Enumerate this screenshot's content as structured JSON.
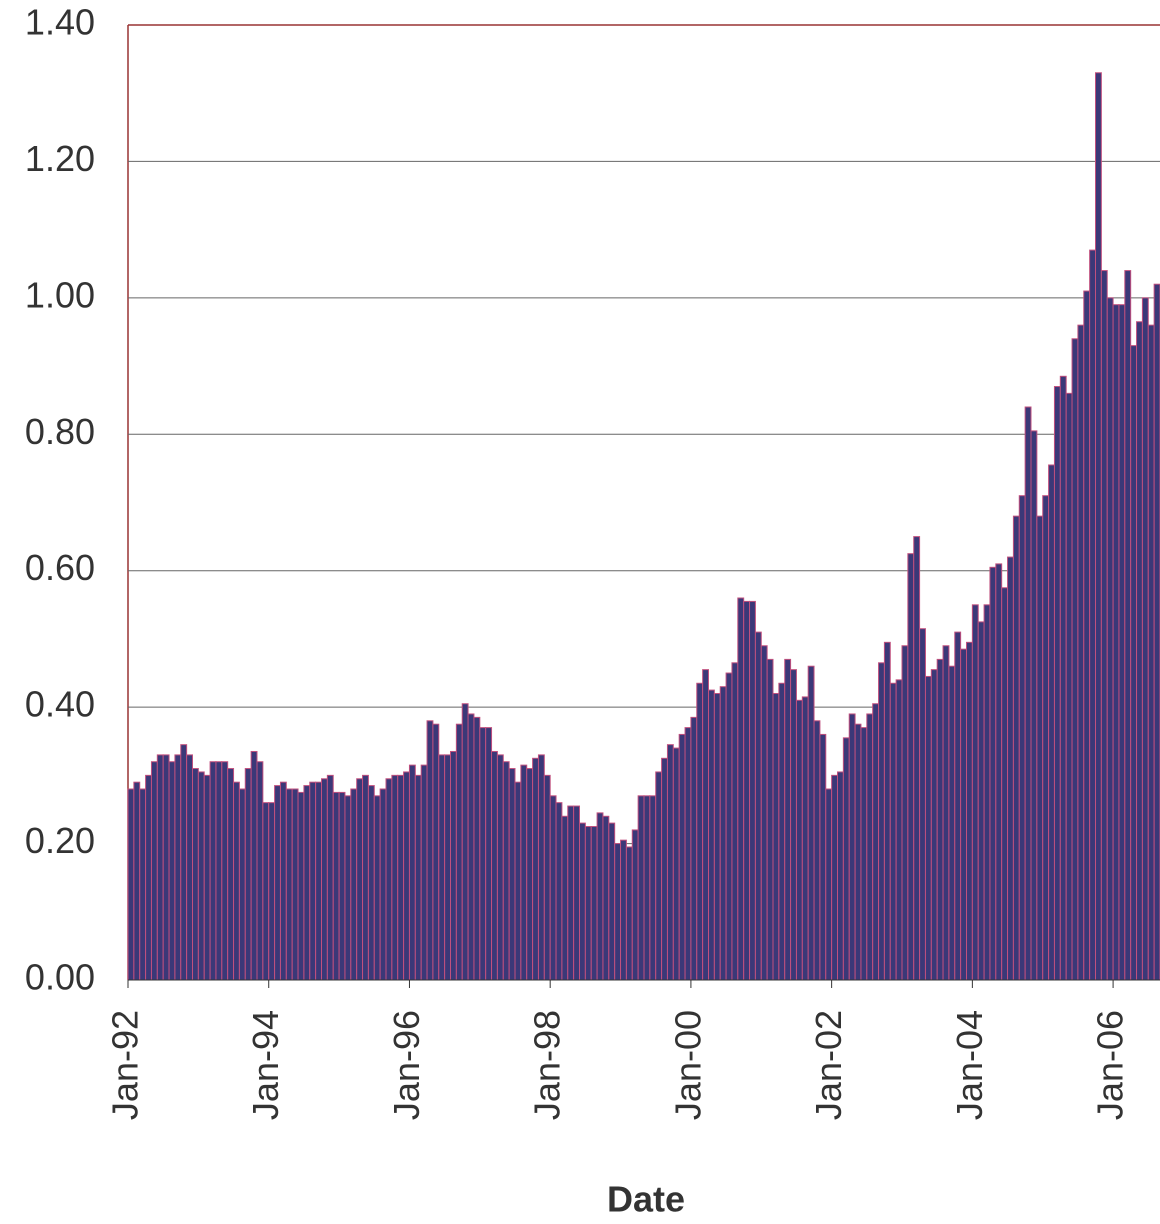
{
  "chart_data": {
    "type": "bar",
    "x_label": "Date",
    "categories": [
      "Jan-92",
      null,
      null,
      null,
      null,
      null,
      null,
      null,
      null,
      null,
      null,
      null,
      null,
      null,
      null,
      null,
      null,
      null,
      null,
      null,
      null,
      null,
      null,
      null,
      "Jan-94",
      null,
      null,
      null,
      null,
      null,
      null,
      null,
      null,
      null,
      null,
      null,
      null,
      null,
      null,
      null,
      null,
      null,
      null,
      null,
      null,
      null,
      null,
      null,
      "Jan-96",
      null,
      null,
      null,
      null,
      null,
      null,
      null,
      null,
      null,
      null,
      null,
      null,
      null,
      null,
      null,
      null,
      null,
      null,
      null,
      null,
      null,
      null,
      null,
      "Jan-98",
      null,
      null,
      null,
      null,
      null,
      null,
      null,
      null,
      null,
      null,
      null,
      null,
      null,
      null,
      null,
      null,
      null,
      null,
      null,
      null,
      null,
      null,
      null,
      "Jan-00",
      null,
      null,
      null,
      null,
      null,
      null,
      null,
      null,
      null,
      null,
      null,
      null,
      null,
      null,
      null,
      null,
      null,
      null,
      null,
      null,
      null,
      null,
      null,
      "Jan-02",
      null,
      null,
      null,
      null,
      null,
      null,
      null,
      null,
      null,
      null,
      null,
      null,
      null,
      null,
      null,
      null,
      null,
      null,
      null,
      null,
      null,
      null,
      null,
      "Jan-04",
      null,
      null,
      null,
      null,
      null,
      null,
      null,
      null,
      null,
      null,
      null,
      null,
      null,
      null,
      null,
      null,
      null,
      null,
      null,
      null,
      null,
      null,
      null,
      "Jan-06",
      null,
      null,
      null,
      null,
      null,
      null,
      null
    ],
    "values": [
      0.28,
      0.29,
      0.28,
      0.3,
      0.32,
      0.33,
      0.33,
      0.32,
      0.33,
      0.345,
      0.33,
      0.31,
      0.305,
      0.3,
      0.32,
      0.32,
      0.32,
      0.31,
      0.29,
      0.28,
      0.31,
      0.335,
      0.32,
      0.26,
      0.26,
      0.285,
      0.29,
      0.28,
      0.28,
      0.275,
      0.285,
      0.29,
      0.29,
      0.295,
      0.3,
      0.275,
      0.275,
      0.27,
      0.28,
      0.295,
      0.3,
      0.285,
      0.27,
      0.28,
      0.295,
      0.3,
      0.3,
      0.305,
      0.315,
      0.3,
      0.315,
      0.38,
      0.375,
      0.33,
      0.33,
      0.335,
      0.375,
      0.405,
      0.39,
      0.385,
      0.37,
      0.37,
      0.335,
      0.33,
      0.32,
      0.31,
      0.29,
      0.315,
      0.31,
      0.325,
      0.33,
      0.3,
      0.27,
      0.26,
      0.24,
      0.255,
      0.255,
      0.23,
      0.225,
      0.225,
      0.245,
      0.24,
      0.23,
      0.2,
      0.205,
      0.195,
      0.22,
      0.27,
      0.27,
      0.27,
      0.305,
      0.325,
      0.345,
      0.34,
      0.36,
      0.37,
      0.385,
      0.435,
      0.455,
      0.425,
      0.42,
      0.43,
      0.45,
      0.465,
      0.56,
      0.555,
      0.555,
      0.51,
      0.49,
      0.47,
      0.42,
      0.435,
      0.47,
      0.455,
      0.41,
      0.415,
      0.46,
      0.38,
      0.36,
      0.28,
      0.3,
      0.305,
      0.355,
      0.39,
      0.375,
      0.37,
      0.39,
      0.405,
      0.465,
      0.495,
      0.435,
      0.44,
      0.49,
      0.625,
      0.65,
      0.515,
      0.445,
      0.455,
      0.47,
      0.49,
      0.46,
      0.51,
      0.485,
      0.495,
      0.55,
      0.525,
      0.55,
      0.605,
      0.61,
      0.575,
      0.62,
      0.68,
      0.71,
      0.84,
      0.805,
      0.68,
      0.71,
      0.755,
      0.87,
      0.885,
      0.86,
      0.94,
      0.96,
      1.01,
      1.07,
      1.33,
      1.04,
      1.0,
      0.99,
      0.99,
      1.04,
      0.93,
      0.965,
      1.0,
      0.96,
      1.02
    ],
    "color": "#3b3878",
    "edge_color": "#c0507e",
    "ylim": [
      0,
      1.4
    ],
    "yticks": [
      {
        "value": 0,
        "label": "0.00"
      },
      {
        "value": 0.2,
        "label": "0.20"
      },
      {
        "value": 0.4,
        "label": "0.40"
      },
      {
        "value": 0.6,
        "label": "0.60"
      },
      {
        "value": 0.8,
        "label": "0.80"
      },
      {
        "value": 1.0,
        "label": "1.00"
      },
      {
        "value": 1.2,
        "label": "1.20"
      },
      {
        "value": 1.4,
        "label": "1.40"
      }
    ],
    "grid": true
  }
}
